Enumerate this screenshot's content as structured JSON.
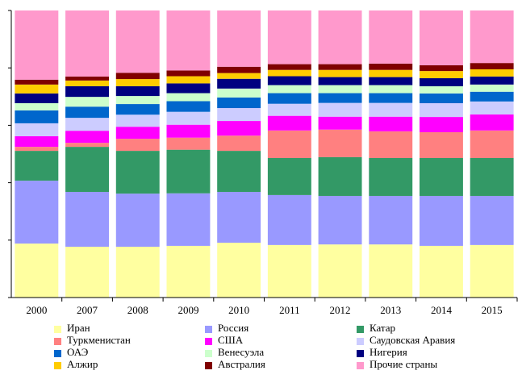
{
  "chart_data": {
    "type": "stacked_bar",
    "categories": [
      "2000",
      "2007",
      "2008",
      "2009",
      "2010",
      "2011",
      "2012",
      "2013",
      "2014",
      "2015"
    ],
    "ylim": [
      0,
      100
    ],
    "yticks": [
      0,
      20,
      40,
      60,
      80,
      100
    ],
    "series": [
      {
        "name": "Иран",
        "color": "#ffffa0",
        "values": [
          18.8,
          17.7,
          17.7,
          18.0,
          19.1,
          18.3,
          18.5,
          18.5,
          18.0,
          18.3
        ]
      },
      {
        "name": "Россия",
        "color": "#9999ff",
        "values": [
          21.9,
          19.1,
          18.5,
          18.3,
          17.7,
          17.4,
          16.9,
          16.9,
          17.4,
          17.1
        ]
      },
      {
        "name": "Катар",
        "color": "#339966",
        "values": [
          10.4,
          15.7,
          14.9,
          15.2,
          14.3,
          12.9,
          13.5,
          13.2,
          13.2,
          13.2
        ]
      },
      {
        "name": "Туркменистан",
        "color": "#ff8080",
        "values": [
          1.4,
          1.4,
          4.2,
          4.2,
          5.3,
          9.6,
          9.6,
          9.3,
          9.0,
          9.6
        ]
      },
      {
        "name": "США",
        "color": "#ff00ff",
        "values": [
          3.7,
          4.2,
          4.2,
          4.5,
          5.1,
          5.1,
          4.5,
          5.1,
          5.3,
          5.6
        ]
      },
      {
        "name": "Саудовская Аравия",
        "color": "#ccccff",
        "values": [
          4.5,
          4.5,
          4.2,
          4.5,
          4.5,
          4.2,
          4.8,
          4.8,
          4.8,
          4.5
        ]
      },
      {
        "name": "ОАЭ",
        "color": "#0066cc",
        "values": [
          4.5,
          3.9,
          3.7,
          3.7,
          3.7,
          3.7,
          3.4,
          3.4,
          3.4,
          3.4
        ]
      },
      {
        "name": "Венесуэла",
        "color": "#ccffcc",
        "values": [
          2.5,
          3.4,
          2.8,
          2.8,
          3.1,
          2.8,
          2.8,
          2.8,
          2.5,
          2.5
        ]
      },
      {
        "name": "Нигерия",
        "color": "#000080",
        "values": [
          3.4,
          3.7,
          3.4,
          3.4,
          3.4,
          3.1,
          2.8,
          2.8,
          2.8,
          2.8
        ]
      },
      {
        "name": "Алжир",
        "color": "#ffcc00",
        "values": [
          3.1,
          2.0,
          2.5,
          2.5,
          2.0,
          2.2,
          2.5,
          2.5,
          2.5,
          2.5
        ]
      },
      {
        "name": "Австралия",
        "color": "#800000",
        "values": [
          1.7,
          1.4,
          2.2,
          2.0,
          2.2,
          2.0,
          2.0,
          2.2,
          2.0,
          2.2
        ]
      },
      {
        "name": "Прочие страны",
        "color": "#ff99cc",
        "values": [
          24.1,
          23.0,
          21.7,
          20.9,
          19.6,
          18.7,
          18.7,
          18.5,
          19.1,
          18.3
        ]
      }
    ]
  }
}
